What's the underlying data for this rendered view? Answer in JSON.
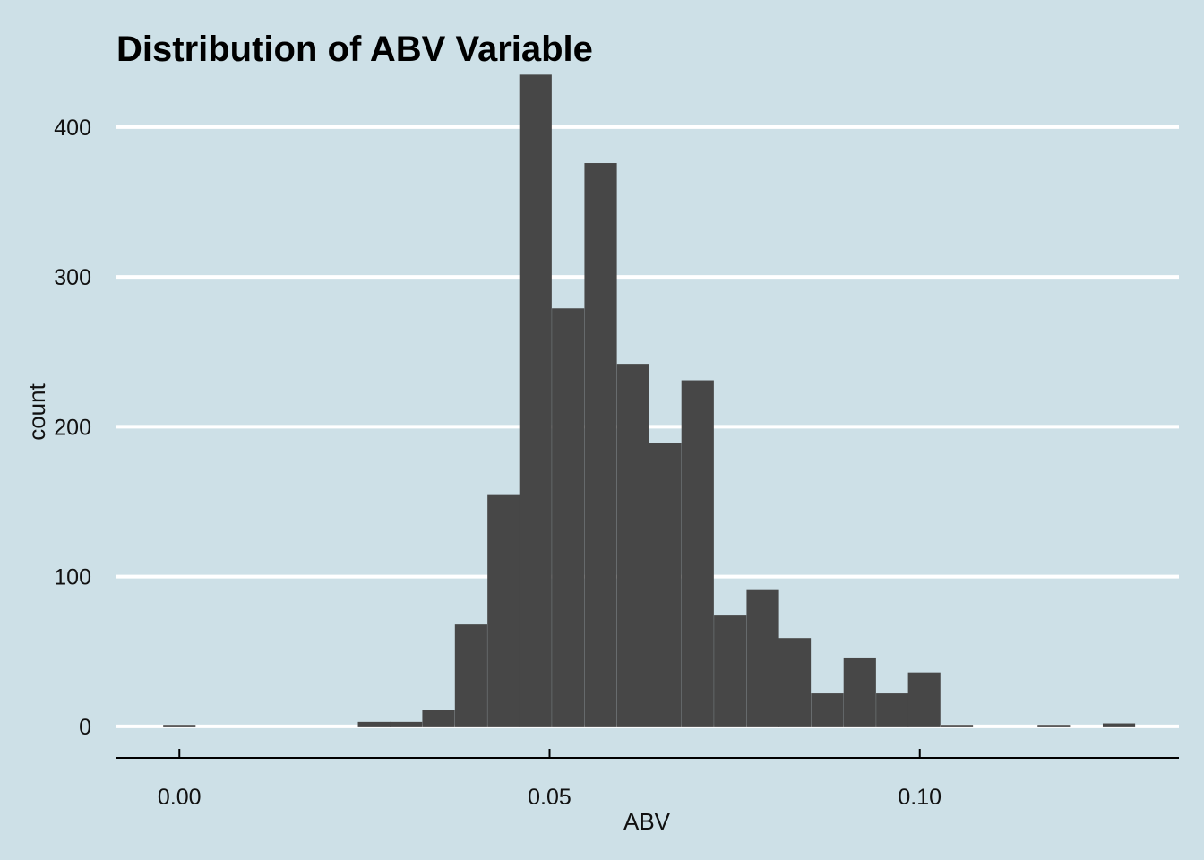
{
  "chart_data": {
    "type": "bar",
    "title": "Distribution of ABV Variable",
    "xlabel": "ABV",
    "ylabel": "count",
    "xlim": [
      -0.0085,
      0.135
    ],
    "ylim": [
      -21,
      437
    ],
    "x_ticks": [
      0.0,
      0.05,
      0.1
    ],
    "x_tick_labels": [
      "0.00",
      "0.05",
      "0.10"
    ],
    "y_ticks": [
      0,
      100,
      200,
      300,
      400
    ],
    "y_tick_labels": [
      "0",
      "100",
      "200",
      "300",
      "400"
    ],
    "grid": "horizontal",
    "bin_width": 0.004375,
    "bins": [
      {
        "x": 0.0,
        "count": 1
      },
      {
        "x": 0.0263,
        "count": 3
      },
      {
        "x": 0.0306,
        "count": 3
      },
      {
        "x": 0.035,
        "count": 11
      },
      {
        "x": 0.0394,
        "count": 68
      },
      {
        "x": 0.0438,
        "count": 155
      },
      {
        "x": 0.0481,
        "count": 435
      },
      {
        "x": 0.0525,
        "count": 279
      },
      {
        "x": 0.0569,
        "count": 376
      },
      {
        "x": 0.0613,
        "count": 242
      },
      {
        "x": 0.0656,
        "count": 189
      },
      {
        "x": 0.07,
        "count": 231
      },
      {
        "x": 0.0744,
        "count": 74
      },
      {
        "x": 0.0788,
        "count": 91
      },
      {
        "x": 0.0831,
        "count": 59
      },
      {
        "x": 0.0875,
        "count": 22
      },
      {
        "x": 0.0919,
        "count": 46
      },
      {
        "x": 0.0963,
        "count": 22
      },
      {
        "x": 0.1006,
        "count": 36
      },
      {
        "x": 0.105,
        "count": 1
      },
      {
        "x": 0.1181,
        "count": 1
      },
      {
        "x": 0.1269,
        "count": 2
      }
    ]
  },
  "colors": {
    "background": "#cde0e7",
    "bar": "#474747",
    "gridline": "#ffffff",
    "axis": "#000000"
  }
}
